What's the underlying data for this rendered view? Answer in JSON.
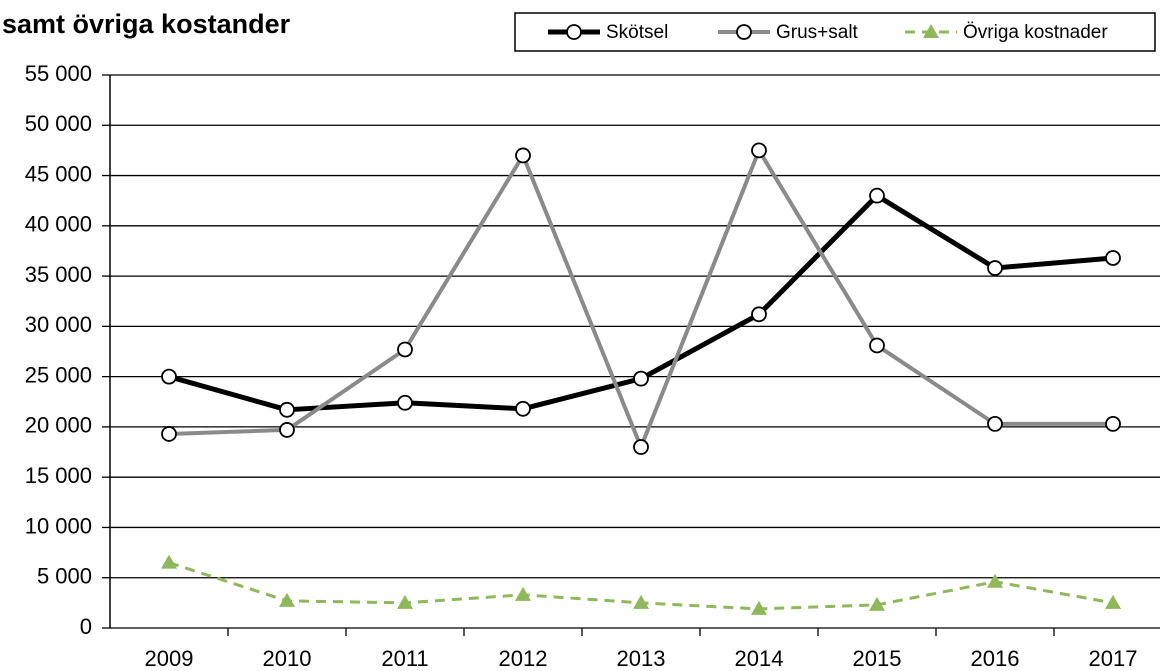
{
  "chart_data": {
    "type": "line",
    "title": "samt övriga kostander",
    "categories": [
      "2009",
      "2010",
      "2011",
      "2012",
      "2013",
      "2014",
      "2015",
      "2016",
      "2017"
    ],
    "series": [
      {
        "name": "Skötsel",
        "color": "#000000",
        "values": [
          25000,
          21700,
          22400,
          21800,
          24800,
          31200,
          43000,
          35800,
          36800
        ]
      },
      {
        "name": "Grus+salt",
        "color": "#8a8a8a",
        "values": [
          19300,
          19700,
          27700,
          47000,
          18000,
          47500,
          28100,
          20300,
          20300
        ]
      },
      {
        "name": "Övriga kostnader",
        "color": "#8fb85a",
        "values": [
          6500,
          2700,
          2500,
          3300,
          2500,
          1900,
          2300,
          4600,
          2500
        ]
      }
    ],
    "ylim": [
      0,
      55000
    ],
    "yticks": [
      0,
      {
        "value": 5000,
        "label": "5 000"
      },
      {
        "value": 10000,
        "label": "10 000"
      },
      {
        "value": 15000,
        "label": "15 000"
      },
      {
        "value": 20000,
        "label": "20 000"
      },
      {
        "value": 25000,
        "label": "25 000"
      },
      {
        "value": 30000,
        "label": "30 000"
      },
      {
        "value": 35000,
        "label": "35 000"
      },
      {
        "value": 40000,
        "label": "40 000"
      },
      {
        "value": 45000,
        "label": "45 000"
      },
      {
        "value": 50000,
        "label": "50 000"
      },
      {
        "value": 55000,
        "label": "55 000"
      }
    ],
    "grid": true,
    "legend": "top"
  }
}
